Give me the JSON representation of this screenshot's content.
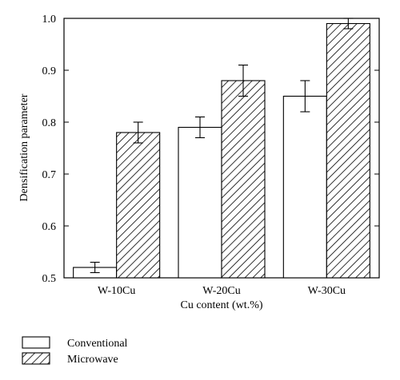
{
  "chart_data": {
    "type": "bar",
    "title": "",
    "xlabel": "Cu content (wt.%)",
    "ylabel": "Densification parameter",
    "categories": [
      "W-10Cu",
      "W-20Cu",
      "W-30Cu"
    ],
    "ylim": [
      0.5,
      1.0
    ],
    "yticks": [
      "0.5",
      "0.6",
      "0.7",
      "0.8",
      "0.9",
      "1.0"
    ],
    "grid": false,
    "legend_position": "bottom-left",
    "series": [
      {
        "name": "Conventional",
        "fill": "open",
        "values": [
          0.52,
          0.79,
          0.85
        ],
        "errors": [
          0.01,
          0.02,
          0.03
        ]
      },
      {
        "name": "Microwave",
        "fill": "hatched",
        "values": [
          0.78,
          0.88,
          0.99
        ],
        "errors": [
          0.02,
          0.03,
          0.01
        ]
      }
    ]
  },
  "colors": {
    "axis": "#000000",
    "bar_stroke": "#000000",
    "open_fill": "#ffffff",
    "hatch": "#000000"
  }
}
